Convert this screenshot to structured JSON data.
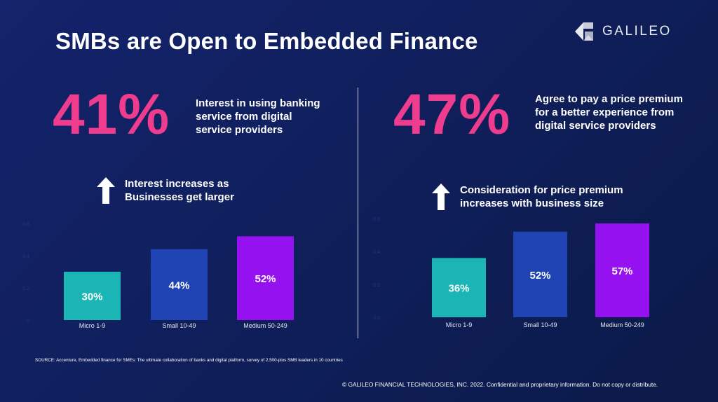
{
  "title": "SMBs are Open to Embedded Finance",
  "logo": {
    "text": "GALILEO"
  },
  "panels": [
    {
      "stat": "41%",
      "description": [
        "Interest in using banking",
        "service from digital",
        "service providers"
      ],
      "trend": [
        "Interest increases as",
        "Businesses get larger"
      ]
    },
    {
      "stat": "47%",
      "description": [
        "Agree to pay a price premium",
        "for a better experience from",
        "digital service providers"
      ],
      "trend": [
        "Consideration for price premium",
        "increases with business size"
      ]
    }
  ],
  "colors": {
    "background": "#14236b",
    "accent_pink": "#ee3d8f",
    "bar_micro": "#1bb5b5",
    "bar_small": "#1f43b3",
    "bar_medium": "#9611f0"
  },
  "chart_data": [
    {
      "type": "bar",
      "categories": [
        "Micro 1-9",
        "Small 10-49",
        "Medium 50-249"
      ],
      "values": [
        0.3,
        0.44,
        0.52
      ],
      "value_labels": [
        "30%",
        "44%",
        "52%"
      ],
      "ylim": [
        0,
        0.6
      ],
      "yticks": [
        "0",
        "0.2",
        "0.4",
        "0.6"
      ],
      "grid": false
    },
    {
      "type": "bar",
      "categories": [
        "Micro 1-9",
        "Small 10-49",
        "Medium 50-249"
      ],
      "values": [
        0.36,
        0.52,
        0.57
      ],
      "value_labels": [
        "36%",
        "52%",
        "57%"
      ],
      "ylim": [
        0,
        0.6
      ],
      "yticks": [
        "0.0",
        "0.2",
        "0.4",
        "0.6"
      ],
      "grid": false
    }
  ],
  "source": "SOURCE: Accenture, Embedded finance for SMEs: The ultimate collaboration of banks and digital platform, survey of 2,500-plus SMB leaders in 10 countries",
  "copyright": "© GALILEO FINANCIAL TECHNOLOGIES, INC. 2022. Confidential and proprietary information. Do not copy or distribute."
}
